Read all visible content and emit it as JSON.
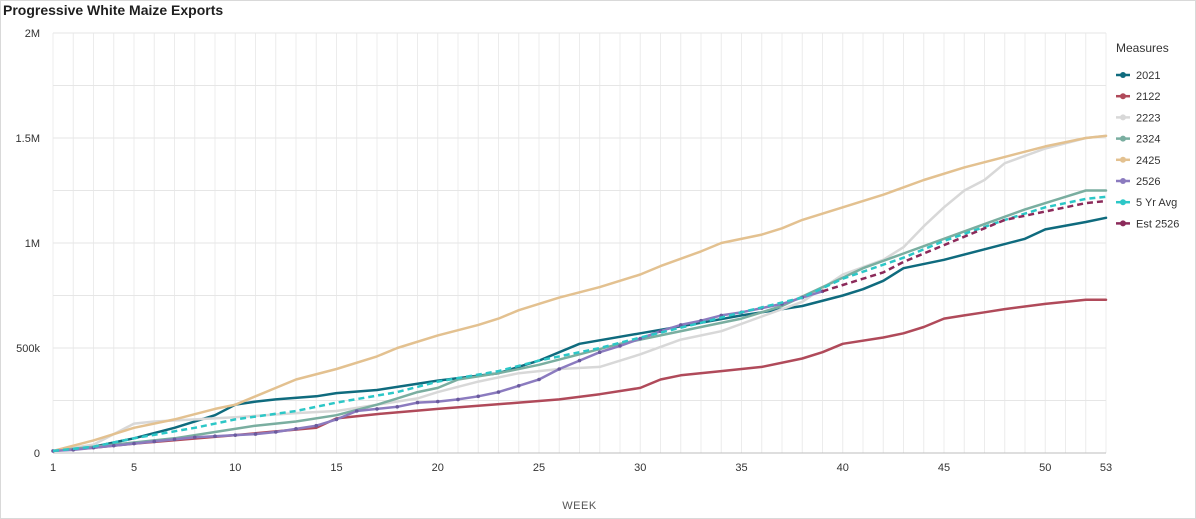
{
  "chart_data": {
    "type": "line",
    "title": "Progressive White Maize Exports",
    "xlabel": "WEEK",
    "ylabel": "",
    "xlim": [
      1,
      53
    ],
    "ylim": [
      0,
      2000000
    ],
    "x_ticks": [
      1,
      5,
      10,
      15,
      20,
      25,
      30,
      35,
      40,
      45,
      50,
      53
    ],
    "y_ticks": [
      {
        "value": 0,
        "label": "0"
      },
      {
        "value": 500000,
        "label": "500k"
      },
      {
        "value": 1000000,
        "label": "1M"
      },
      {
        "value": 1500000,
        "label": "1.5M"
      },
      {
        "value": 2000000,
        "label": "2M"
      }
    ],
    "grid": true,
    "legend_title": "Measures",
    "legend_position": "right",
    "series": [
      {
        "name": "2021",
        "color": "#0f6b7e",
        "style": "solid",
        "points": [
          [
            1,
            10000
          ],
          [
            3,
            30000
          ],
          [
            5,
            70000
          ],
          [
            7,
            120000
          ],
          [
            9,
            180000
          ],
          [
            10,
            230000
          ],
          [
            11,
            245000
          ],
          [
            12,
            255000
          ],
          [
            14,
            270000
          ],
          [
            15,
            285000
          ],
          [
            17,
            300000
          ],
          [
            20,
            345000
          ],
          [
            23,
            380000
          ],
          [
            25,
            440000
          ],
          [
            27,
            520000
          ],
          [
            30,
            570000
          ],
          [
            33,
            620000
          ],
          [
            35,
            655000
          ],
          [
            36,
            670000
          ],
          [
            38,
            700000
          ],
          [
            40,
            750000
          ],
          [
            41,
            780000
          ],
          [
            42,
            820000
          ],
          [
            43,
            880000
          ],
          [
            45,
            920000
          ],
          [
            47,
            970000
          ],
          [
            49,
            1020000
          ],
          [
            50,
            1065000
          ],
          [
            52,
            1100000
          ],
          [
            53,
            1120000
          ]
        ]
      },
      {
        "name": "2122",
        "color": "#b04a5a",
        "style": "solid",
        "points": [
          [
            1,
            10000
          ],
          [
            3,
            25000
          ],
          [
            5,
            45000
          ],
          [
            10,
            85000
          ],
          [
            14,
            120000
          ],
          [
            15,
            165000
          ],
          [
            17,
            185000
          ],
          [
            20,
            210000
          ],
          [
            22,
            225000
          ],
          [
            24,
            240000
          ],
          [
            26,
            255000
          ],
          [
            28,
            280000
          ],
          [
            30,
            310000
          ],
          [
            31,
            350000
          ],
          [
            32,
            370000
          ],
          [
            34,
            390000
          ],
          [
            36,
            410000
          ],
          [
            38,
            450000
          ],
          [
            39,
            480000
          ],
          [
            40,
            520000
          ],
          [
            42,
            550000
          ],
          [
            43,
            570000
          ],
          [
            44,
            600000
          ],
          [
            45,
            640000
          ],
          [
            46,
            655000
          ],
          [
            47,
            670000
          ],
          [
            48,
            685000
          ],
          [
            50,
            710000
          ],
          [
            52,
            730000
          ],
          [
            53,
            730000
          ]
        ]
      },
      {
        "name": "2223",
        "color": "#d8d8d8",
        "style": "solid",
        "points": [
          [
            1,
            10000
          ],
          [
            3,
            40000
          ],
          [
            4,
            90000
          ],
          [
            5,
            140000
          ],
          [
            6,
            150000
          ],
          [
            8,
            160000
          ],
          [
            10,
            170000
          ],
          [
            13,
            190000
          ],
          [
            15,
            200000
          ],
          [
            17,
            230000
          ],
          [
            19,
            260000
          ],
          [
            20,
            290000
          ],
          [
            22,
            340000
          ],
          [
            24,
            380000
          ],
          [
            26,
            400000
          ],
          [
            28,
            410000
          ],
          [
            30,
            470000
          ],
          [
            32,
            540000
          ],
          [
            34,
            580000
          ],
          [
            36,
            650000
          ],
          [
            38,
            720000
          ],
          [
            40,
            850000
          ],
          [
            42,
            920000
          ],
          [
            43,
            980000
          ],
          [
            44,
            1080000
          ],
          [
            45,
            1170000
          ],
          [
            46,
            1250000
          ],
          [
            47,
            1300000
          ],
          [
            48,
            1380000
          ],
          [
            50,
            1450000
          ],
          [
            52,
            1500000
          ],
          [
            53,
            1510000
          ]
        ]
      },
      {
        "name": "2324",
        "color": "#7aaea0",
        "style": "solid",
        "points": [
          [
            1,
            10000
          ],
          [
            3,
            30000
          ],
          [
            5,
            50000
          ],
          [
            7,
            70000
          ],
          [
            9,
            100000
          ],
          [
            11,
            130000
          ],
          [
            13,
            150000
          ],
          [
            15,
            180000
          ],
          [
            17,
            230000
          ],
          [
            18,
            260000
          ],
          [
            19,
            290000
          ],
          [
            20,
            310000
          ],
          [
            21,
            350000
          ],
          [
            23,
            380000
          ],
          [
            25,
            420000
          ],
          [
            27,
            470000
          ],
          [
            29,
            520000
          ],
          [
            31,
            560000
          ],
          [
            33,
            600000
          ],
          [
            35,
            640000
          ],
          [
            37,
            700000
          ],
          [
            39,
            790000
          ],
          [
            41,
            880000
          ],
          [
            43,
            950000
          ],
          [
            45,
            1020000
          ],
          [
            47,
            1090000
          ],
          [
            49,
            1160000
          ],
          [
            51,
            1220000
          ],
          [
            52,
            1250000
          ],
          [
            53,
            1250000
          ]
        ]
      },
      {
        "name": "2425",
        "color": "#e3c190",
        "style": "solid",
        "points": [
          [
            1,
            10000
          ],
          [
            3,
            60000
          ],
          [
            5,
            120000
          ],
          [
            7,
            160000
          ],
          [
            9,
            210000
          ],
          [
            10,
            230000
          ],
          [
            11,
            270000
          ],
          [
            12,
            310000
          ],
          [
            13,
            350000
          ],
          [
            15,
            400000
          ],
          [
            17,
            460000
          ],
          [
            18,
            500000
          ],
          [
            20,
            560000
          ],
          [
            22,
            610000
          ],
          [
            23,
            640000
          ],
          [
            24,
            680000
          ],
          [
            26,
            740000
          ],
          [
            28,
            790000
          ],
          [
            30,
            850000
          ],
          [
            31,
            890000
          ],
          [
            33,
            960000
          ],
          [
            34,
            1000000
          ],
          [
            36,
            1040000
          ],
          [
            37,
            1070000
          ],
          [
            38,
            1110000
          ],
          [
            40,
            1170000
          ],
          [
            42,
            1230000
          ],
          [
            44,
            1300000
          ],
          [
            46,
            1360000
          ],
          [
            48,
            1410000
          ],
          [
            50,
            1460000
          ],
          [
            52,
            1500000
          ],
          [
            53,
            1510000
          ]
        ]
      },
      {
        "name": "2526",
        "color": "#8b7bbf",
        "style": "solid-markers",
        "points": [
          [
            1,
            10000
          ],
          [
            2,
            15000
          ],
          [
            3,
            25000
          ],
          [
            4,
            35000
          ],
          [
            5,
            45000
          ],
          [
            6,
            55000
          ],
          [
            7,
            65000
          ],
          [
            8,
            75000
          ],
          [
            9,
            80000
          ],
          [
            10,
            85000
          ],
          [
            11,
            90000
          ],
          [
            12,
            100000
          ],
          [
            13,
            115000
          ],
          [
            14,
            130000
          ],
          [
            15,
            160000
          ],
          [
            16,
            200000
          ],
          [
            17,
            210000
          ],
          [
            18,
            220000
          ],
          [
            19,
            240000
          ],
          [
            20,
            245000
          ],
          [
            21,
            255000
          ],
          [
            22,
            270000
          ],
          [
            23,
            290000
          ],
          [
            24,
            320000
          ],
          [
            25,
            350000
          ],
          [
            26,
            400000
          ],
          [
            27,
            440000
          ],
          [
            28,
            480000
          ],
          [
            29,
            510000
          ],
          [
            30,
            545000
          ],
          [
            31,
            580000
          ],
          [
            32,
            610000
          ],
          [
            33,
            630000
          ],
          [
            34,
            655000
          ],
          [
            35,
            670000
          ],
          [
            36,
            690000
          ],
          [
            37,
            710000
          ],
          [
            38,
            740000
          ],
          [
            39,
            770000
          ]
        ]
      },
      {
        "name": "5 Yr Avg",
        "color": "#2cc7c7",
        "style": "dashed",
        "points": [
          [
            1,
            10000
          ],
          [
            3,
            30000
          ],
          [
            5,
            70000
          ],
          [
            8,
            120000
          ],
          [
            10,
            160000
          ],
          [
            13,
            200000
          ],
          [
            15,
            240000
          ],
          [
            18,
            290000
          ],
          [
            20,
            340000
          ],
          [
            23,
            390000
          ],
          [
            25,
            440000
          ],
          [
            28,
            500000
          ],
          [
            30,
            550000
          ],
          [
            33,
            620000
          ],
          [
            35,
            670000
          ],
          [
            38,
            740000
          ],
          [
            40,
            830000
          ],
          [
            43,
            930000
          ],
          [
            45,
            1010000
          ],
          [
            48,
            1110000
          ],
          [
            50,
            1170000
          ],
          [
            52,
            1210000
          ],
          [
            53,
            1220000
          ]
        ]
      },
      {
        "name": "Est 2526",
        "color": "#8b2a5a",
        "style": "dashed",
        "points": [
          [
            39,
            770000
          ],
          [
            40,
            800000
          ],
          [
            41,
            830000
          ],
          [
            42,
            860000
          ],
          [
            43,
            910000
          ],
          [
            44,
            950000
          ],
          [
            45,
            990000
          ],
          [
            46,
            1030000
          ],
          [
            47,
            1070000
          ],
          [
            48,
            1110000
          ],
          [
            49,
            1130000
          ],
          [
            50,
            1150000
          ],
          [
            51,
            1170000
          ],
          [
            52,
            1190000
          ],
          [
            53,
            1200000
          ]
        ]
      }
    ]
  }
}
